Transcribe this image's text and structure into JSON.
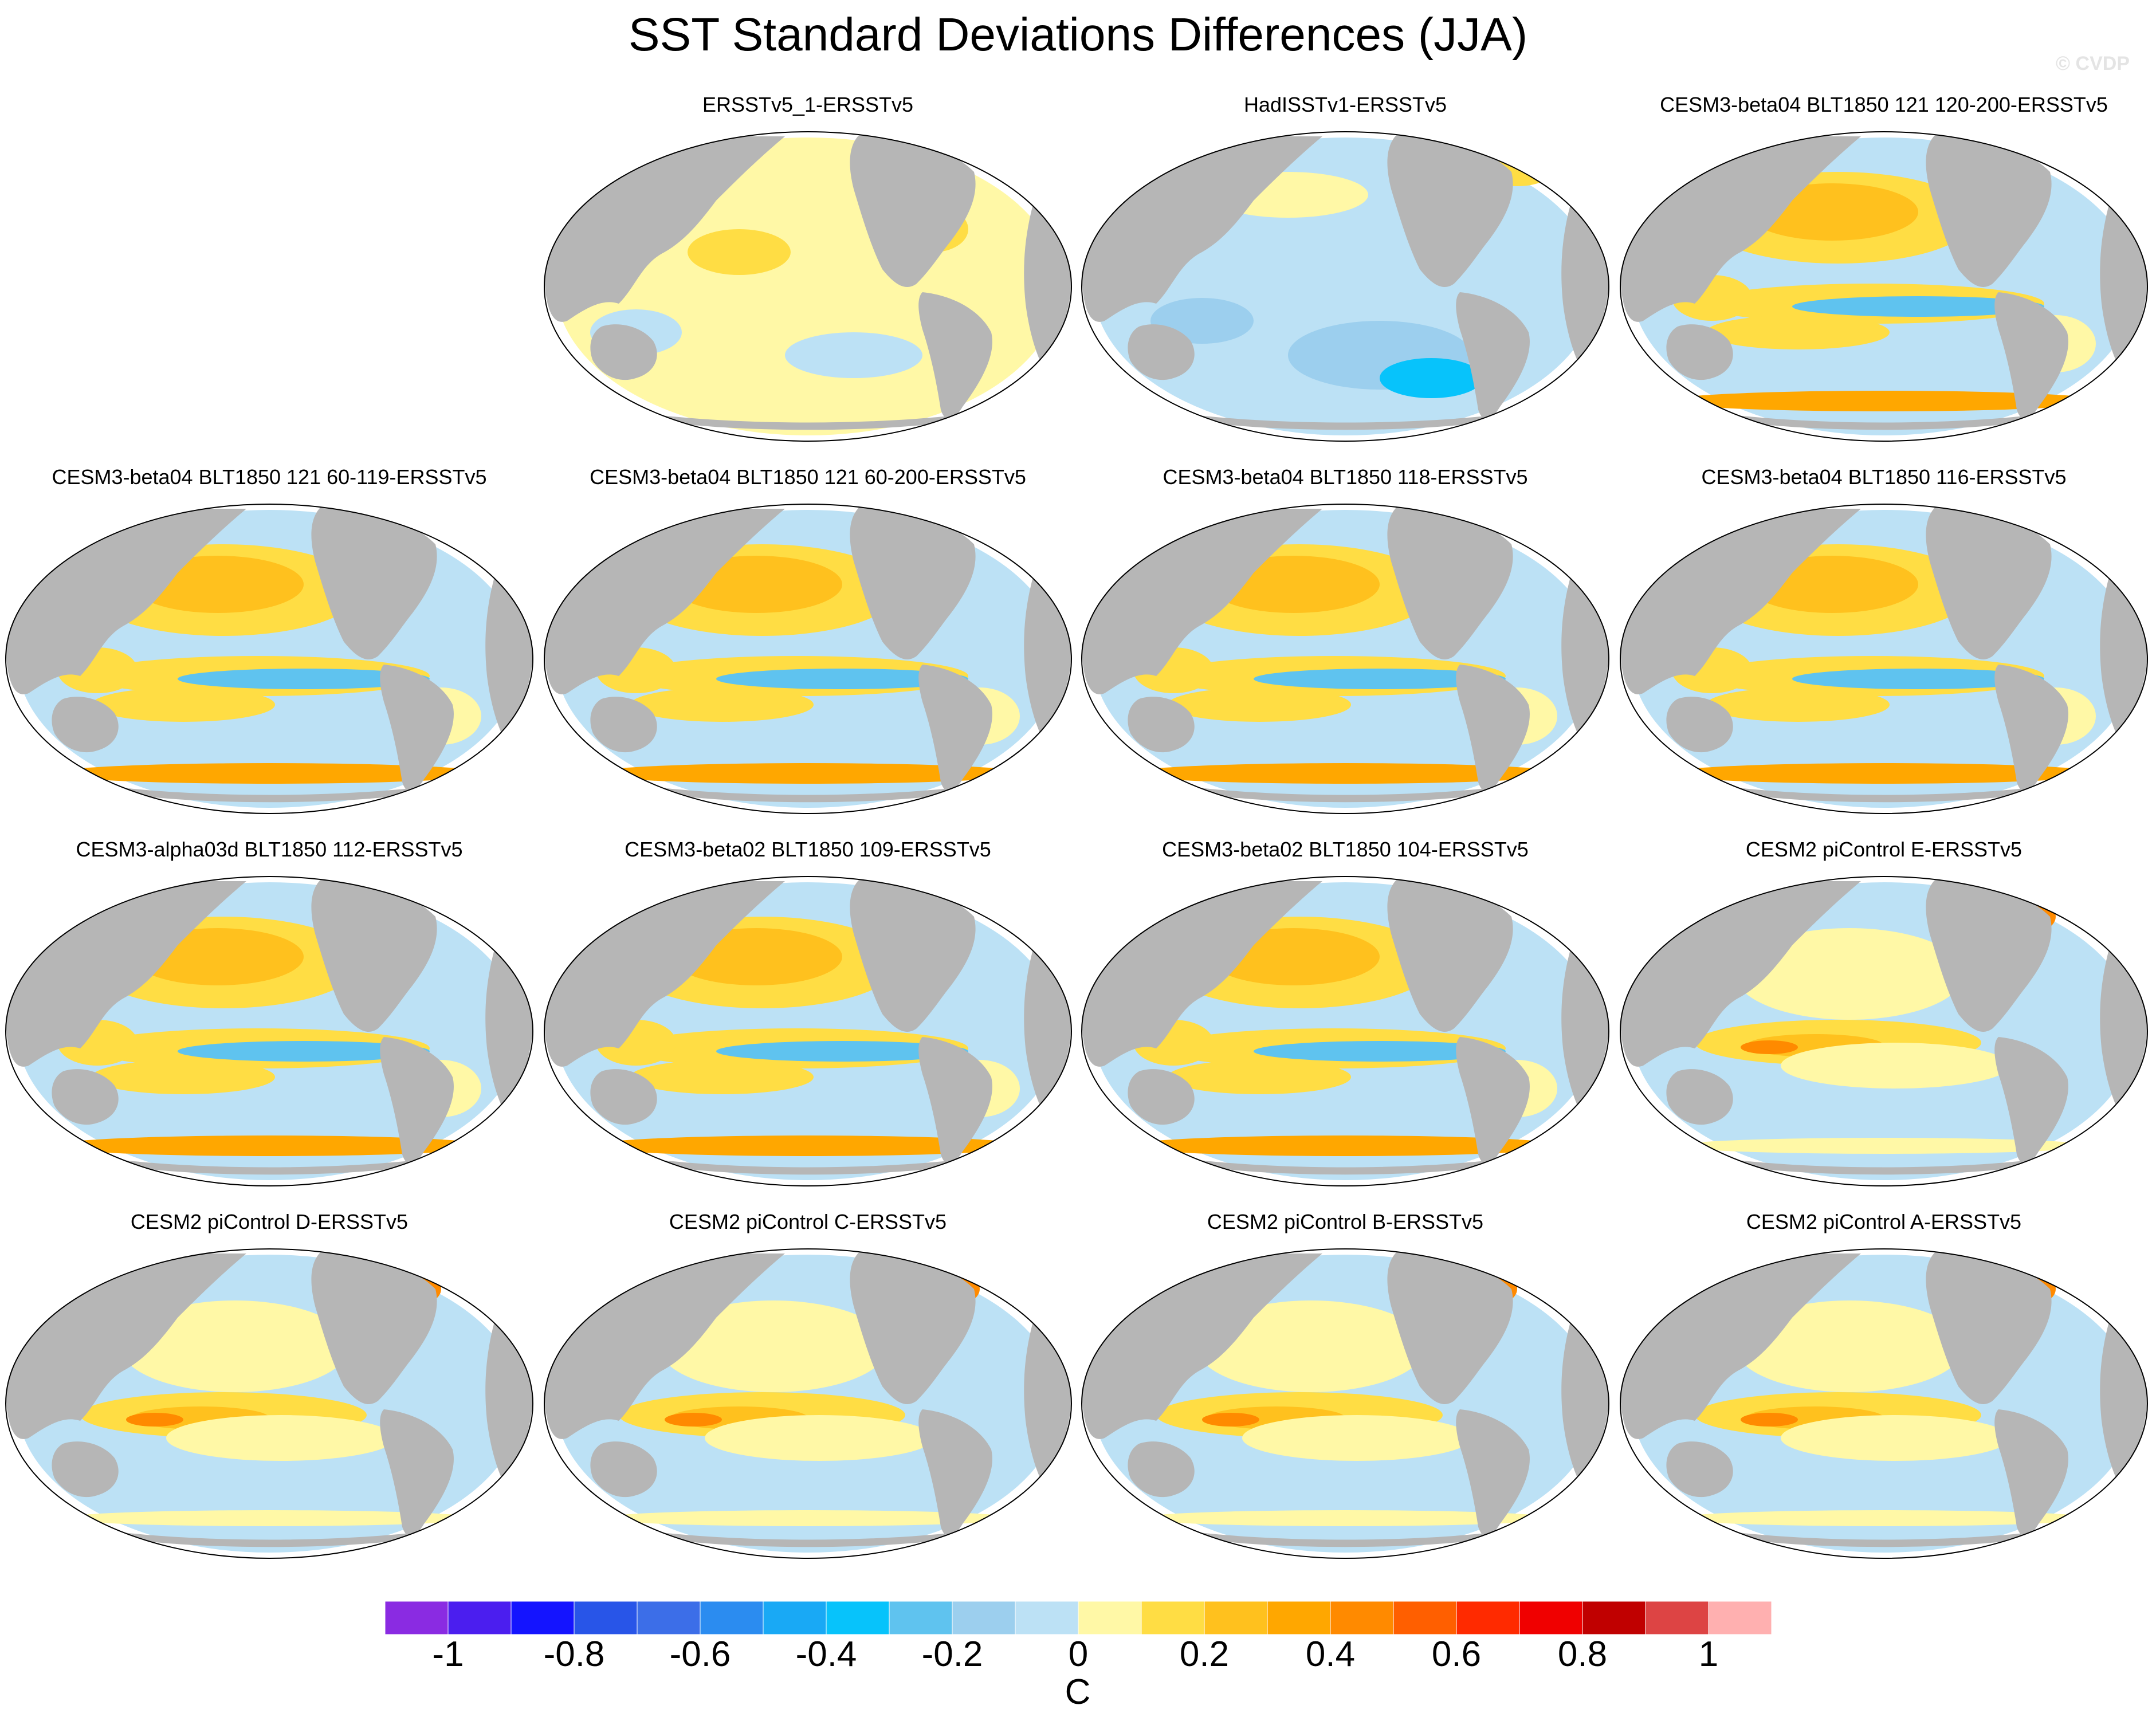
{
  "title": "SST Standard Deviations Differences (JJA)",
  "watermark": "© CVDP",
  "colorbar": {
    "colors": [
      "#8a2be2",
      "#4b1eef",
      "#1414ff",
      "#2855e8",
      "#3c6ee8",
      "#2b8cf0",
      "#19a9f5",
      "#07c3fb",
      "#5fc3ef",
      "#9ccfee",
      "#bce1f5",
      "#fff8a6",
      "#ffdd44",
      "#ffc11e",
      "#ffa700",
      "#ff8a00",
      "#ff5f00",
      "#ff2a00",
      "#f00000",
      "#c00000",
      "#dd4444",
      "#ffb0b0"
    ],
    "tick_labels": [
      "-1",
      "-0.8",
      "-0.6",
      "-0.4",
      "-0.2",
      "0",
      "0.2",
      "0.4",
      "0.6",
      "0.8",
      "1"
    ],
    "unit": "C"
  },
  "panels": [
    {
      "title": "ERSSTv5_1-ERSSTv5",
      "style": "yellow"
    },
    {
      "title": "HadISSTv1-ERSSTv5",
      "style": "blue"
    },
    {
      "title": "CESM3-beta04 BLT1850 121 120-200-ERSSTv5",
      "style": "strong"
    },
    {
      "title": "CESM3-beta04 BLT1850 121 60-119-ERSSTv5",
      "style": "strong"
    },
    {
      "title": "CESM3-beta04 BLT1850 121 60-200-ERSSTv5",
      "style": "strong"
    },
    {
      "title": "CESM3-beta04 BLT1850 118-ERSSTv5",
      "style": "strong"
    },
    {
      "title": "CESM3-beta04 BLT1850 116-ERSSTv5",
      "style": "strong"
    },
    {
      "title": "CESM3-alpha03d BLT1850 112-ERSSTv5",
      "style": "strong"
    },
    {
      "title": "CESM3-beta02 BLT1850 109-ERSSTv5",
      "style": "strong"
    },
    {
      "title": "CESM3-beta02 BLT1850 104-ERSSTv5",
      "style": "strong"
    },
    {
      "title": "CESM2 piControl E-ERSSTv5",
      "style": "cesm2"
    },
    {
      "title": "CESM2 piControl D-ERSSTv5",
      "style": "cesm2"
    },
    {
      "title": "CESM2 piControl C-ERSSTv5",
      "style": "cesm2"
    },
    {
      "title": "CESM2 piControl B-ERSSTv5",
      "style": "cesm2"
    },
    {
      "title": "CESM2 piControl A-ERSSTv5",
      "style": "cesm2"
    }
  ]
}
